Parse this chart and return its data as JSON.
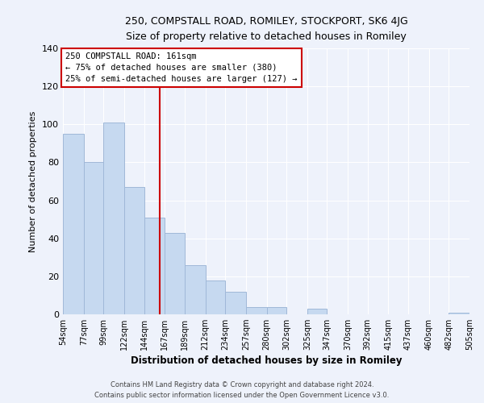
{
  "title_line1": "250, COMPSTALL ROAD, ROMILEY, STOCKPORT, SK6 4JG",
  "title_line2": "Size of property relative to detached houses in Romiley",
  "xlabel": "Distribution of detached houses by size in Romiley",
  "ylabel": "Number of detached properties",
  "bar_edges": [
    54,
    77,
    99,
    122,
    144,
    167,
    189,
    212,
    234,
    257,
    280,
    302,
    325,
    347,
    370,
    392,
    415,
    437,
    460,
    482,
    505
  ],
  "bar_heights": [
    95,
    80,
    101,
    67,
    51,
    43,
    26,
    18,
    12,
    4,
    4,
    0,
    3,
    0,
    0,
    0,
    0,
    0,
    0,
    1
  ],
  "bar_color": "#c6d9f0",
  "bar_edgecolor": "#a0b8d8",
  "marker_x": 161,
  "marker_label": "250 COMPSTALL ROAD: 161sqm",
  "marker_line_color": "#cc0000",
  "annotation_line1": "← 75% of detached houses are smaller (380)",
  "annotation_line2": "25% of semi-detached houses are larger (127) →",
  "annotation_box_color": "#ffffff",
  "annotation_box_edgecolor": "#cc0000",
  "ylim": [
    0,
    140
  ],
  "xlim": [
    54,
    505
  ],
  "footer_line1": "Contains HM Land Registry data © Crown copyright and database right 2024.",
  "footer_line2": "Contains public sector information licensed under the Open Government Licence v3.0.",
  "tick_labels": [
    "54sqm",
    "77sqm",
    "99sqm",
    "122sqm",
    "144sqm",
    "167sqm",
    "189sqm",
    "212sqm",
    "234sqm",
    "257sqm",
    "280sqm",
    "302sqm",
    "325sqm",
    "347sqm",
    "370sqm",
    "392sqm",
    "415sqm",
    "437sqm",
    "460sqm",
    "482sqm",
    "505sqm"
  ],
  "background_color": "#eef2fb",
  "yticks": [
    0,
    20,
    40,
    60,
    80,
    100,
    120,
    140
  ]
}
